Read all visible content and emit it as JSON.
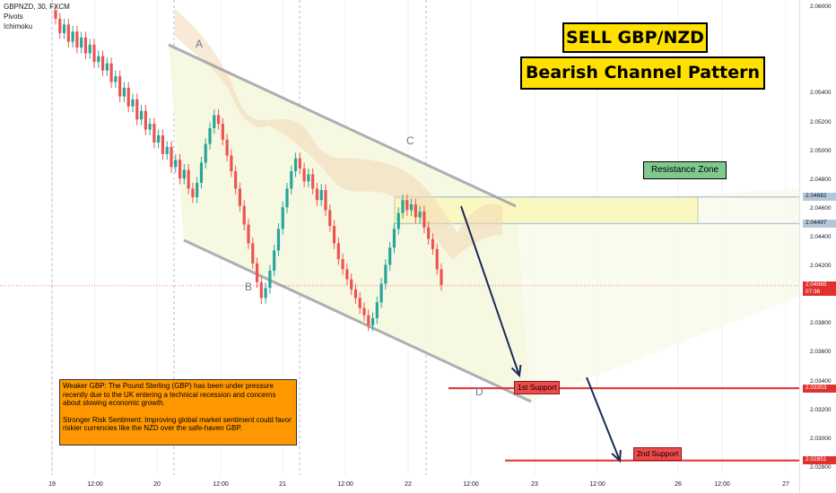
{
  "chart_data": {
    "type": "candlestick",
    "symbol_line": "GBPNZD, 30, FXCM",
    "indicators": [
      "Pivots",
      "Ichimoku"
    ],
    "title": "SELL GBP/NZD",
    "subtitle": "Bearish Channel Pattern",
    "y_ticks": [
      "2.06000",
      "2.05400",
      "2.05200",
      "2.05000",
      "2.04800",
      "2.04600",
      "2.04400",
      "2.04200",
      "2.03800",
      "2.03600",
      "2.03400",
      "2.03200",
      "2.03000",
      "2.02800"
    ],
    "ylim": [
      2.0275,
      2.0605
    ],
    "x_ticks": [
      "19",
      "12:00",
      "20",
      "12:00",
      "21",
      "12:00",
      "22",
      "12:00",
      "23",
      "12:00",
      "26",
      "12:00",
      "27"
    ],
    "price_levels": [
      {
        "label": "2.04682",
        "value": 2.04682,
        "color": "#b2c8d8"
      },
      {
        "label": "2.04497",
        "value": 2.04497,
        "color": "#b2c8d8"
      },
      {
        "label": "2.04065",
        "value": 2.04065,
        "color": "#e0312f",
        "extra": "07:36"
      },
      {
        "label": "2.03353",
        "value": 2.03353,
        "color": "#e0312f"
      },
      {
        "label": "2.02851",
        "value": 2.02851,
        "color": "#e0312f"
      }
    ],
    "resistance_zone": {
      "label": "Resistance Zone",
      "top": 2.04682,
      "bottom": 2.04497
    },
    "supports": [
      {
        "label": "1st Support",
        "value": 2.03353
      },
      {
        "label": "2nd Support",
        "value": 2.02851
      }
    ],
    "points": [
      {
        "label": "A",
        "value": 2.0528
      },
      {
        "label": "B",
        "value": 2.0393
      },
      {
        "label": "C",
        "value": 2.0469
      },
      {
        "label": "D",
        "value": 2.0328
      }
    ],
    "closes": [
      2.0592,
      2.0582,
      2.0588,
      2.0576,
      2.0583,
      2.0572,
      2.0579,
      2.0568,
      2.0574,
      2.0562,
      2.0566,
      2.0556,
      2.0561,
      2.0548,
      2.0552,
      2.0538,
      2.0544,
      2.0531,
      2.0536,
      2.0522,
      2.0528,
      2.0515,
      2.0519,
      2.0506,
      2.0511,
      2.0498,
      2.0503,
      2.0489,
      2.0494,
      2.0481,
      2.0487,
      2.0474,
      2.0468,
      2.0478,
      2.0492,
      2.0505,
      2.0516,
      2.0525,
      2.0519,
      2.0508,
      2.0497,
      2.0486,
      2.0474,
      2.0462,
      2.0449,
      2.0436,
      2.0422,
      2.0409,
      2.0398,
      2.0405,
      2.0417,
      2.0431,
      2.0446,
      2.0461,
      2.0474,
      2.0486,
      2.0495,
      2.0488,
      2.0479,
      2.0484,
      2.0474,
      2.0466,
      2.0473,
      2.0459,
      2.0448,
      2.0436,
      2.0425,
      2.0418,
      2.0411,
      2.0404,
      2.0398,
      2.0391,
      2.0386,
      2.0379,
      2.0384,
      2.0395,
      2.0408,
      2.0421,
      2.0433,
      2.0446,
      2.0457,
      2.0466,
      2.0459,
      2.0463,
      2.0454,
      2.0458,
      2.0447,
      2.0439,
      2.0432,
      2.0418,
      2.0407
    ],
    "annotation": {
      "p1": "Weaker GBP: The Pound Sterling (GBP) has been under pressure recently due to the UK entering a technical recession and concerns about slowing economic growth.",
      "p2": "Stronger Risk Sentiment: Improving global market sentiment could favor riskier currencies like the NZD over the safe-haven GBP."
    }
  }
}
